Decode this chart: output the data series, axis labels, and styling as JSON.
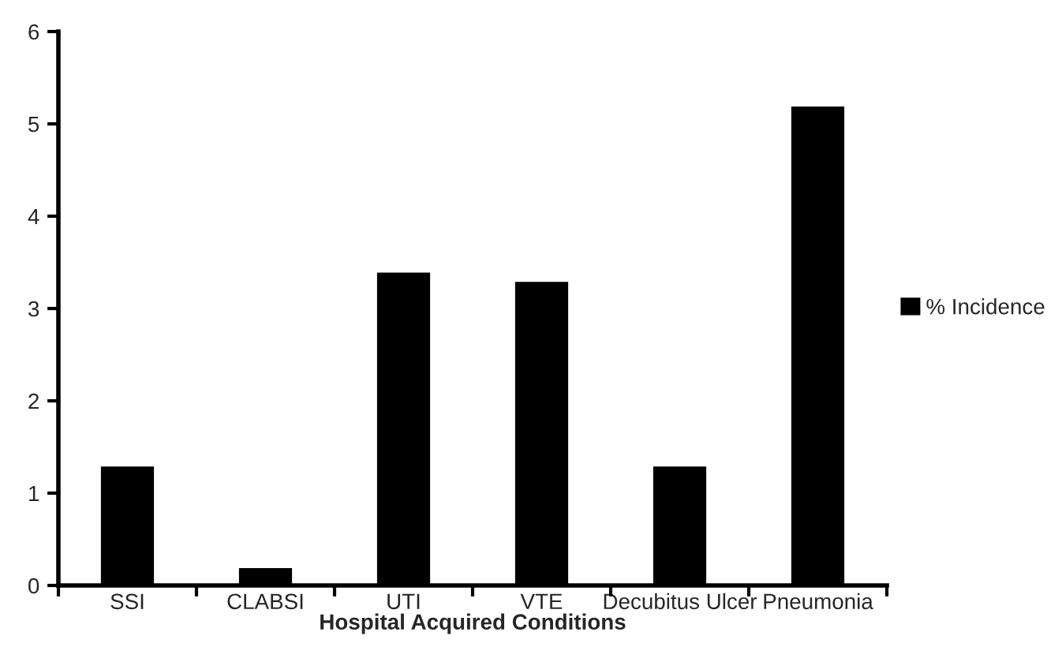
{
  "chart_data": {
    "type": "bar",
    "xlabel": "Hospital Acquired Conditions",
    "categories": [
      "SSI",
      "CLABSI",
      "UTI",
      "VTE",
      "Decubitus Ulcer",
      "Pneumonia"
    ],
    "series": [
      {
        "name": "% Incidence",
        "color": "#000000",
        "values": [
          1.3,
          0.2,
          3.4,
          3.3,
          1.3,
          5.2
        ]
      }
    ],
    "ylim": [
      0,
      6
    ],
    "yticks": [
      0,
      1,
      2,
      3,
      4,
      5,
      6
    ],
    "grid": false,
    "legend": "right"
  }
}
